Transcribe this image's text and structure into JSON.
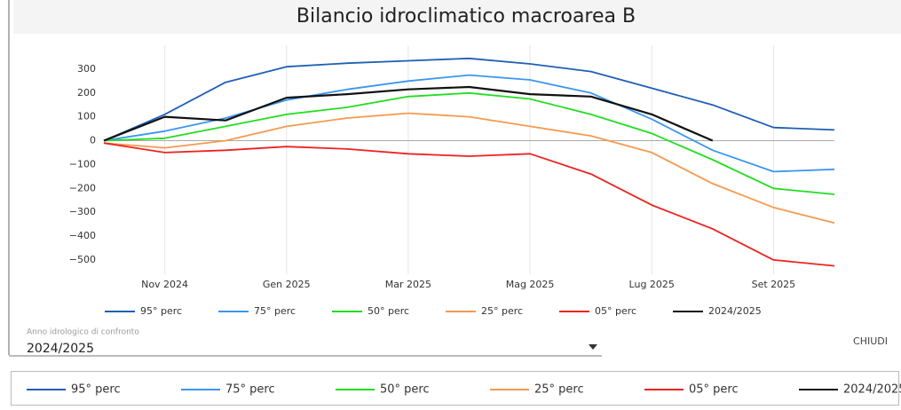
{
  "chart_data": {
    "type": "line",
    "title": "Bilancio idroclimatico macroarea B",
    "x": [
      "2024-10",
      "2024-11",
      "2024-12",
      "2025-01",
      "2025-02",
      "2025-03",
      "2025-04",
      "2025-05",
      "2025-06",
      "2025-07",
      "2025-08",
      "2025-09",
      "2025-10"
    ],
    "xlim": [
      "2024-10",
      "2025-10"
    ],
    "xticks": [
      {
        "value": "2024-11",
        "label": "Nov 2024"
      },
      {
        "value": "2025-01",
        "label": "Gen 2025"
      },
      {
        "value": "2025-03",
        "label": "Mar 2025"
      },
      {
        "value": "2025-05",
        "label": "Mag 2025"
      },
      {
        "value": "2025-07",
        "label": "Lug 2025"
      },
      {
        "value": "2025-09",
        "label": "Set 2025"
      }
    ],
    "ylim": [
      -560,
      400
    ],
    "yticks": [
      {
        "value": -500,
        "label": "−500"
      },
      {
        "value": -400,
        "label": "−400"
      },
      {
        "value": -300,
        "label": "−300"
      },
      {
        "value": -200,
        "label": "−200"
      },
      {
        "value": -100,
        "label": "−100"
      },
      0,
      100,
      200,
      300
    ],
    "grid": "x",
    "series": [
      {
        "name": "95° perc",
        "color": "#1f5fb4",
        "values": [
          0,
          110,
          245,
          310,
          325,
          335,
          345,
          322,
          290,
          220,
          150,
          55,
          45
        ]
      },
      {
        "name": "75° perc",
        "color": "#3a96f0",
        "values": [
          0,
          40,
          95,
          170,
          215,
          250,
          275,
          255,
          200,
          90,
          -40,
          -130,
          -120
        ]
      },
      {
        "name": "50° perc",
        "color": "#22dd22",
        "values": [
          0,
          10,
          60,
          110,
          140,
          185,
          200,
          175,
          110,
          30,
          -80,
          -200,
          -225
        ]
      },
      {
        "name": "25° perc",
        "color": "#f59a50",
        "values": [
          -10,
          -30,
          0,
          60,
          95,
          115,
          100,
          60,
          20,
          -50,
          -180,
          -280,
          -345
        ]
      },
      {
        "name": "05° perc",
        "color": "#ee2222",
        "values": [
          -10,
          -50,
          -40,
          -25,
          -35,
          -55,
          -65,
          -55,
          -140,
          -270,
          -370,
          -500,
          -525
        ]
      },
      {
        "name": "2024/2025",
        "color": "#111111",
        "values": [
          0,
          100,
          85,
          180,
          195,
          215,
          225,
          195,
          185,
          110,
          0,
          null,
          null
        ]
      }
    ]
  },
  "controls": {
    "label": "Anno idrologico di confronto",
    "value": "2024/2025",
    "close": "CHIUDI"
  }
}
